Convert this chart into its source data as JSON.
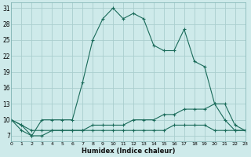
{
  "xlabel": "Humidex (Indice chaleur)",
  "bg_color": "#ceeaea",
  "grid_color": "#aacece",
  "line_color": "#1a6b5a",
  "x_values": [
    0,
    1,
    2,
    3,
    4,
    5,
    6,
    7,
    8,
    9,
    10,
    11,
    12,
    13,
    14,
    15,
    16,
    17,
    18,
    19,
    20,
    21,
    22,
    23
  ],
  "series1": [
    10,
    9,
    7,
    10,
    10,
    10,
    10,
    17,
    25,
    29,
    31,
    29,
    30,
    29,
    24,
    23,
    23,
    27,
    21,
    20,
    13,
    13,
    9,
    8
  ],
  "series2": [
    10,
    9,
    8,
    8,
    8,
    8,
    8,
    8,
    9,
    9,
    9,
    9,
    10,
    10,
    10,
    11,
    11,
    12,
    12,
    12,
    13,
    10,
    8,
    8
  ],
  "series3": [
    10,
    8,
    7,
    7,
    8,
    8,
    8,
    8,
    8,
    8,
    8,
    8,
    8,
    8,
    8,
    8,
    9,
    9,
    9,
    9,
    8,
    8,
    8,
    8
  ],
  "ylim": [
    6,
    32
  ],
  "yticks": [
    7,
    10,
    13,
    16,
    19,
    22,
    25,
    28,
    31
  ],
  "xlim": [
    0,
    23
  ]
}
